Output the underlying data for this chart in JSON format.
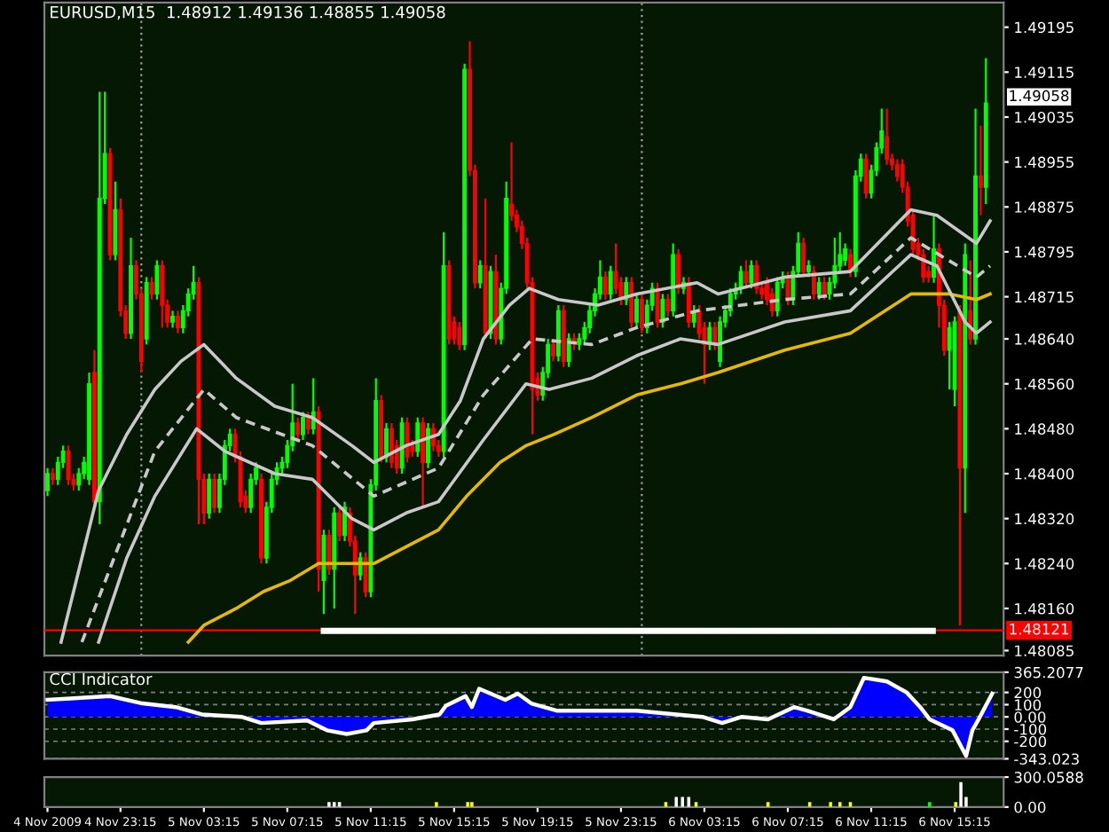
{
  "chart_data": [
    {
      "type": "candlestick",
      "title": "EURUSD,M15  1.48912 1.49136 1.48855 1.49058",
      "tick_labels": "y",
      "xlim": [
        "2009-11-04T19:36",
        "2009-11-06T17:36"
      ],
      "ylim": [
        1.48076,
        1.49239
      ],
      "yticks": [
        {
          "value": 1.49195,
          "label": "1.49195"
        },
        {
          "value": 1.49115,
          "label": "1.49115"
        },
        {
          "value": 1.49035,
          "label": "1.49035"
        },
        {
          "value": 1.48955,
          "label": "1.48955"
        },
        {
          "value": 1.48875,
          "label": "1.48875"
        },
        {
          "value": 1.48795,
          "label": "1.48795"
        },
        {
          "value": 1.48715,
          "label": "1.48715"
        },
        {
          "value": 1.4864,
          "label": "1.48640"
        },
        {
          "value": 1.4856,
          "label": "1.48560"
        },
        {
          "value": 1.4848,
          "label": "1.48480"
        },
        {
          "value": 1.484,
          "label": "1.48400"
        },
        {
          "value": 1.4832,
          "label": "1.48320"
        },
        {
          "value": 1.4824,
          "label": "1.48240"
        },
        {
          "value": 1.4816,
          "label": "1.48160"
        },
        {
          "value": 1.48085,
          "label": "1.48085"
        }
      ],
      "x": [
        "2009-11-04T19:45",
        "2009-11-04T20:00",
        "2009-11-04T20:15",
        "2009-11-04T20:30",
        "2009-11-04T20:45",
        "2009-11-04T21:00",
        "2009-11-04T21:15",
        "2009-11-04T21:30",
        "2009-11-04T21:45",
        "2009-11-04T22:00",
        "2009-11-04T22:15",
        "2009-11-04T22:30",
        "2009-11-04T22:45",
        "2009-11-04T23:00",
        "2009-11-04T23:15",
        "2009-11-04T23:30",
        "2009-11-04T23:45",
        "2009-11-05T00:00",
        "2009-11-05T00:15",
        "2009-11-05T00:30",
        "2009-11-05T00:45",
        "2009-11-05T01:00",
        "2009-11-05T01:15",
        "2009-11-05T01:30",
        "2009-11-05T01:45",
        "2009-11-05T02:00",
        "2009-11-05T02:15",
        "2009-11-05T02:30",
        "2009-11-05T02:45",
        "2009-11-05T03:00",
        "2009-11-05T03:15",
        "2009-11-05T03:30",
        "2009-11-05T03:45",
        "2009-11-05T04:00",
        "2009-11-05T04:15",
        "2009-11-05T04:30",
        "2009-11-05T04:45",
        "2009-11-05T05:00",
        "2009-11-05T05:15",
        "2009-11-05T05:30",
        "2009-11-05T05:45",
        "2009-11-05T06:00",
        "2009-11-05T06:15",
        "2009-11-05T06:30",
        "2009-11-05T06:45",
        "2009-11-05T07:00",
        "2009-11-05T07:15",
        "2009-11-05T07:30",
        "2009-11-05T07:45",
        "2009-11-05T08:00",
        "2009-11-05T08:15",
        "2009-11-05T08:30",
        "2009-11-05T08:45",
        "2009-11-05T09:00",
        "2009-11-05T09:15",
        "2009-11-05T09:30",
        "2009-11-05T09:45",
        "2009-11-05T10:00",
        "2009-11-05T10:15",
        "2009-11-05T10:30",
        "2009-11-05T10:45",
        "2009-11-05T11:00",
        "2009-11-05T11:15",
        "2009-11-05T11:30",
        "2009-11-05T11:45",
        "2009-11-05T12:00",
        "2009-11-05T12:15",
        "2009-11-05T12:30",
        "2009-11-05T12:45",
        "2009-11-05T13:00",
        "2009-11-05T13:15",
        "2009-11-05T13:30",
        "2009-11-05T13:45",
        "2009-11-05T14:00",
        "2009-11-05T14:15",
        "2009-11-05T14:30",
        "2009-11-05T14:45",
        "2009-11-05T15:00",
        "2009-11-05T15:15",
        "2009-11-05T15:30",
        "2009-11-05T15:45",
        "2009-11-05T16:00",
        "2009-11-05T16:15",
        "2009-11-05T16:30",
        "2009-11-05T16:45",
        "2009-11-05T17:00",
        "2009-11-05T17:15",
        "2009-11-05T17:30",
        "2009-11-05T17:45",
        "2009-11-05T18:00",
        "2009-11-05T18:15",
        "2009-11-05T18:30",
        "2009-11-05T18:45",
        "2009-11-05T19:00",
        "2009-11-05T19:15",
        "2009-11-05T19:30",
        "2009-11-05T19:45",
        "2009-11-05T20:00",
        "2009-11-05T20:15",
        "2009-11-05T20:30",
        "2009-11-05T20:45",
        "2009-11-05T21:00",
        "2009-11-05T21:15",
        "2009-11-05T21:30",
        "2009-11-05T21:45",
        "2009-11-05T22:00",
        "2009-11-05T22:15",
        "2009-11-05T22:30",
        "2009-11-05T22:45",
        "2009-11-05T23:00",
        "2009-11-05T23:15",
        "2009-11-05T23:30",
        "2009-11-05T23:45",
        "2009-11-06T00:00",
        "2009-11-06T00:15",
        "2009-11-06T00:30",
        "2009-11-06T00:45",
        "2009-11-06T01:00",
        "2009-11-06T01:15",
        "2009-11-06T01:30",
        "2009-11-06T01:45",
        "2009-11-06T02:00",
        "2009-11-06T02:15",
        "2009-11-06T02:30",
        "2009-11-06T02:45",
        "2009-11-06T03:00",
        "2009-11-06T03:15",
        "2009-11-06T03:30",
        "2009-11-06T03:45",
        "2009-11-06T04:00",
        "2009-11-06T04:15",
        "2009-11-06T04:30",
        "2009-11-06T04:45",
        "2009-11-06T05:00",
        "2009-11-06T05:15",
        "2009-11-06T05:30",
        "2009-11-06T05:45",
        "2009-11-06T06:00",
        "2009-11-06T06:15",
        "2009-11-06T06:30",
        "2009-11-06T06:45",
        "2009-11-06T07:00",
        "2009-11-06T07:15",
        "2009-11-06T07:30",
        "2009-11-06T07:45",
        "2009-11-06T08:00",
        "2009-11-06T08:15",
        "2009-11-06T08:30",
        "2009-11-06T08:45",
        "2009-11-06T09:00",
        "2009-11-06T09:15",
        "2009-11-06T09:30",
        "2009-11-06T09:45",
        "2009-11-06T10:00",
        "2009-11-06T10:15",
        "2009-11-06T10:30",
        "2009-11-06T10:45",
        "2009-11-06T11:00",
        "2009-11-06T11:15",
        "2009-11-06T11:30",
        "2009-11-06T11:45",
        "2009-11-06T12:00",
        "2009-11-06T12:15",
        "2009-11-06T12:30",
        "2009-11-06T12:45",
        "2009-11-06T13:00",
        "2009-11-06T13:15",
        "2009-11-06T13:30",
        "2009-11-06T13:45",
        "2009-11-06T14:00",
        "2009-11-06T14:15",
        "2009-11-06T14:30",
        "2009-11-06T14:45",
        "2009-11-06T15:00",
        "2009-11-06T15:15",
        "2009-11-06T15:30",
        "2009-11-06T15:45",
        "2009-11-06T16:00",
        "2009-11-06T16:15",
        "2009-11-06T16:30",
        "2009-11-06T16:45"
      ],
      "ohlc": [
        [
          1.4837,
          1.4841,
          1.4836,
          1.484
        ],
        [
          1.484,
          1.4841,
          1.4838,
          1.4839
        ],
        [
          1.4839,
          1.4843,
          1.4838,
          1.4842
        ],
        [
          1.4842,
          1.4845,
          1.4841,
          1.4844
        ],
        [
          1.4844,
          1.4845,
          1.4838,
          1.4839
        ],
        [
          1.4839,
          1.484,
          1.4837,
          1.4838
        ],
        [
          1.4838,
          1.4841,
          1.4837,
          1.484
        ],
        [
          1.484,
          1.4843,
          1.4839,
          1.4842
        ],
        [
          1.4839,
          1.4858,
          1.4838,
          1.4856
        ],
        [
          1.4858,
          1.4862,
          1.4834,
          1.4835
        ],
        [
          1.4835,
          1.4908,
          1.4831,
          1.4889
        ],
        [
          1.4889,
          1.4908,
          1.4888,
          1.4897
        ],
        [
          1.4897,
          1.4898,
          1.4878,
          1.4879
        ],
        [
          1.4879,
          1.4892,
          1.4878,
          1.4887
        ],
        [
          1.4887,
          1.4889,
          1.4868,
          1.4869
        ],
        [
          1.4869,
          1.487,
          1.4864,
          1.4865
        ],
        [
          1.4865,
          1.4882,
          1.4864,
          1.4877
        ],
        [
          1.4877,
          1.4878,
          1.4871,
          1.4872
        ],
        [
          1.4872,
          1.4873,
          1.4858,
          1.486
        ],
        [
          1.4864,
          1.4875,
          1.4863,
          1.4874
        ],
        [
          1.4874,
          1.4875,
          1.4871,
          1.4872
        ],
        [
          1.4872,
          1.4878,
          1.4871,
          1.4877
        ],
        [
          1.4877,
          1.4878,
          1.4866,
          1.487
        ],
        [
          1.487,
          1.4871,
          1.4866,
          1.4867
        ],
        [
          1.4867,
          1.4869,
          1.4866,
          1.4868
        ],
        [
          1.4868,
          1.4869,
          1.4865,
          1.4866
        ],
        [
          1.4866,
          1.487,
          1.4865,
          1.4869
        ],
        [
          1.4869,
          1.4873,
          1.4868,
          1.4872
        ],
        [
          1.4872,
          1.4877,
          1.4871,
          1.4874
        ],
        [
          1.4874,
          1.4875,
          1.4831,
          1.4839
        ],
        [
          1.4839,
          1.484,
          1.4831,
          1.4833
        ],
        [
          1.4833,
          1.484,
          1.4832,
          1.4839
        ],
        [
          1.4839,
          1.484,
          1.4833,
          1.4834
        ],
        [
          1.4834,
          1.484,
          1.4833,
          1.4839
        ],
        [
          1.4839,
          1.4846,
          1.4838,
          1.4845
        ],
        [
          1.4845,
          1.4848,
          1.4844,
          1.4847
        ],
        [
          1.4847,
          1.4848,
          1.4842,
          1.4843
        ],
        [
          1.4843,
          1.4844,
          1.4834,
          1.4835
        ],
        [
          1.4836,
          1.4837,
          1.4833,
          1.4834
        ],
        [
          1.4834,
          1.484,
          1.4833,
          1.4839
        ],
        [
          1.4839,
          1.4842,
          1.4838,
          1.4841
        ],
        [
          1.4839,
          1.484,
          1.4824,
          1.4825
        ],
        [
          1.4825,
          1.4835,
          1.4824,
          1.4834
        ],
        [
          1.4834,
          1.484,
          1.4833,
          1.4839
        ],
        [
          1.4839,
          1.4842,
          1.4838,
          1.4841
        ],
        [
          1.4841,
          1.4843,
          1.484,
          1.4842
        ],
        [
          1.4842,
          1.4846,
          1.4841,
          1.4845
        ],
        [
          1.4845,
          1.4856,
          1.4844,
          1.4849
        ],
        [
          1.4849,
          1.485,
          1.4846,
          1.4847
        ],
        [
          1.4847,
          1.4851,
          1.4846,
          1.485
        ],
        [
          1.485,
          1.4851,
          1.4847,
          1.4848
        ],
        [
          1.4848,
          1.4857,
          1.4847,
          1.4851
        ],
        [
          1.4851,
          1.4852,
          1.4819,
          1.4823
        ],
        [
          1.4821,
          1.483,
          1.4815,
          1.4829
        ],
        [
          1.4829,
          1.483,
          1.4822,
          1.4823
        ],
        [
          1.4823,
          1.4834,
          1.4816,
          1.4833
        ],
        [
          1.4833,
          1.4834,
          1.4828,
          1.4829
        ],
        [
          1.4829,
          1.4835,
          1.4828,
          1.4834
        ],
        [
          1.4833,
          1.4834,
          1.4827,
          1.4828
        ],
        [
          1.4828,
          1.4829,
          1.4815,
          1.4822
        ],
        [
          1.4822,
          1.4826,
          1.4821,
          1.4825
        ],
        [
          1.4825,
          1.4826,
          1.4818,
          1.4819
        ],
        [
          1.4819,
          1.4839,
          1.4818,
          1.4838
        ],
        [
          1.4838,
          1.4857,
          1.4837,
          1.4853
        ],
        [
          1.4853,
          1.4854,
          1.4842,
          1.4843
        ],
        [
          1.4843,
          1.4849,
          1.4842,
          1.4848
        ],
        [
          1.4848,
          1.4849,
          1.4841,
          1.4842
        ],
        [
          1.4845,
          1.4846,
          1.484,
          1.4841
        ],
        [
          1.4841,
          1.485,
          1.484,
          1.4849
        ],
        [
          1.4849,
          1.485,
          1.4842,
          1.4843
        ],
        [
          1.4845,
          1.4846,
          1.4843,
          1.4844
        ],
        [
          1.4844,
          1.485,
          1.4843,
          1.4849
        ],
        [
          1.4849,
          1.485,
          1.4834,
          1.4842
        ],
        [
          1.4842,
          1.4849,
          1.4841,
          1.4848
        ],
        [
          1.4848,
          1.4849,
          1.4844,
          1.4845
        ],
        [
          1.4845,
          1.4846,
          1.4843,
          1.4844
        ],
        [
          1.4844,
          1.4883,
          1.4843,
          1.4877
        ],
        [
          1.4877,
          1.4878,
          1.4863,
          1.4864
        ],
        [
          1.4867,
          1.4868,
          1.4863,
          1.4864
        ],
        [
          1.4866,
          1.4867,
          1.4862,
          1.4863
        ],
        [
          1.4863,
          1.4913,
          1.4862,
          1.4912
        ],
        [
          1.4912,
          1.4917,
          1.4893,
          1.4894
        ],
        [
          1.4894,
          1.4895,
          1.4873,
          1.4874
        ],
        [
          1.4874,
          1.4878,
          1.4873,
          1.4877
        ],
        [
          1.4877,
          1.4889,
          1.4864,
          1.4865
        ],
        [
          1.4865,
          1.4877,
          1.4864,
          1.4876
        ],
        [
          1.4876,
          1.4879,
          1.4863,
          1.4864
        ],
        [
          1.4864,
          1.4874,
          1.4863,
          1.4873
        ],
        [
          1.4873,
          1.4892,
          1.4872,
          1.4889
        ],
        [
          1.4888,
          1.4899,
          1.4885,
          1.4886
        ],
        [
          1.4886,
          1.4887,
          1.4883,
          1.4884
        ],
        [
          1.4884,
          1.4885,
          1.488,
          1.4881
        ],
        [
          1.4881,
          1.4882,
          1.4873,
          1.4874
        ],
        [
          1.4874,
          1.4875,
          1.4847,
          1.4855
        ],
        [
          1.4857,
          1.4858,
          1.4853,
          1.4854
        ],
        [
          1.4854,
          1.4859,
          1.4853,
          1.4858
        ],
        [
          1.4858,
          1.4864,
          1.4857,
          1.4863
        ],
        [
          1.4863,
          1.4864,
          1.486,
          1.4861
        ],
        [
          1.4861,
          1.487,
          1.486,
          1.4869
        ],
        [
          1.4869,
          1.487,
          1.4859,
          1.486
        ],
        [
          1.486,
          1.4865,
          1.4859,
          1.4864
        ],
        [
          1.4864,
          1.4865,
          1.4862,
          1.4863
        ],
        [
          1.4863,
          1.4865,
          1.4862,
          1.4864
        ],
        [
          1.4864,
          1.4867,
          1.4863,
          1.4866
        ],
        [
          1.4866,
          1.487,
          1.4865,
          1.4869
        ],
        [
          1.4869,
          1.4873,
          1.4868,
          1.4872
        ],
        [
          1.4872,
          1.4878,
          1.4871,
          1.4875
        ],
        [
          1.4875,
          1.4876,
          1.4871,
          1.4872
        ],
        [
          1.4872,
          1.4877,
          1.4871,
          1.4876
        ],
        [
          1.4876,
          1.4881,
          1.4872,
          1.4873
        ],
        [
          1.4874,
          1.4875,
          1.487,
          1.4871
        ],
        [
          1.4871,
          1.4875,
          1.487,
          1.4874
        ],
        [
          1.4874,
          1.4875,
          1.4866,
          1.4867
        ],
        [
          1.4867,
          1.4872,
          1.4866,
          1.4871
        ],
        [
          1.4871,
          1.4872,
          1.4865,
          1.4866
        ],
        [
          1.4866,
          1.4871,
          1.4865,
          1.487
        ],
        [
          1.487,
          1.4874,
          1.4869,
          1.4873
        ],
        [
          1.4873,
          1.4874,
          1.4866,
          1.4867
        ],
        [
          1.4867,
          1.4872,
          1.4866,
          1.4871
        ],
        [
          1.4871,
          1.4872,
          1.4868,
          1.4869
        ],
        [
          1.4869,
          1.4881,
          1.4868,
          1.4879
        ],
        [
          1.4879,
          1.488,
          1.4872,
          1.4873
        ],
        [
          1.4873,
          1.4875,
          1.4872,
          1.4874
        ],
        [
          1.4874,
          1.4875,
          1.4866,
          1.4867
        ],
        [
          1.4867,
          1.487,
          1.4866,
          1.4869
        ],
        [
          1.4869,
          1.487,
          1.4864,
          1.4865
        ],
        [
          1.4866,
          1.4867,
          1.4856,
          1.4863
        ],
        [
          1.4863,
          1.4867,
          1.4862,
          1.4866
        ],
        [
          1.4866,
          1.4867,
          1.4862,
          1.4863
        ],
        [
          1.486,
          1.4868,
          1.4859,
          1.4867
        ],
        [
          1.4867,
          1.487,
          1.4866,
          1.4869
        ],
        [
          1.4869,
          1.4873,
          1.4868,
          1.4872
        ],
        [
          1.4872,
          1.4874,
          1.4871,
          1.4873
        ],
        [
          1.4873,
          1.4877,
          1.4872,
          1.4876
        ],
        [
          1.4876,
          1.4878,
          1.4873,
          1.4874
        ],
        [
          1.4874,
          1.4878,
          1.4873,
          1.4877
        ],
        [
          1.4877,
          1.4878,
          1.4872,
          1.4873
        ],
        [
          1.4873,
          1.4874,
          1.4871,
          1.4872
        ],
        [
          1.4874,
          1.4875,
          1.487,
          1.4871
        ],
        [
          1.4872,
          1.4873,
          1.4868,
          1.4869
        ],
        [
          1.4869,
          1.4875,
          1.4868,
          1.4874
        ],
        [
          1.4874,
          1.4876,
          1.4873,
          1.4875
        ],
        [
          1.4875,
          1.4876,
          1.487,
          1.4871
        ],
        [
          1.4871,
          1.4877,
          1.487,
          1.4876
        ],
        [
          1.4876,
          1.4883,
          1.4875,
          1.4881
        ],
        [
          1.4881,
          1.4882,
          1.4875,
          1.4876
        ],
        [
          1.4876,
          1.4878,
          1.4875,
          1.4877
        ],
        [
          1.4876,
          1.4877,
          1.4871,
          1.4872
        ],
        [
          1.4872,
          1.4875,
          1.4871,
          1.4874
        ],
        [
          1.4874,
          1.4875,
          1.4871,
          1.4872
        ],
        [
          1.4872,
          1.4875,
          1.4871,
          1.4874
        ],
        [
          1.4874,
          1.4882,
          1.4873,
          1.4877
        ],
        [
          1.4877,
          1.4883,
          1.4876,
          1.4879
        ],
        [
          1.4878,
          1.4881,
          1.4877,
          1.488
        ],
        [
          1.4879,
          1.488,
          1.4875,
          1.4876
        ],
        [
          1.4876,
          1.4894,
          1.4875,
          1.4893
        ],
        [
          1.4893,
          1.4897,
          1.4892,
          1.4896
        ],
        [
          1.4896,
          1.4897,
          1.4889,
          1.489
        ],
        [
          1.489,
          1.4895,
          1.4889,
          1.4894
        ],
        [
          1.4894,
          1.4899,
          1.4893,
          1.4898
        ],
        [
          1.4898,
          1.4905,
          1.4897,
          1.4901
        ],
        [
          1.49,
          1.4905,
          1.4895,
          1.4896
        ],
        [
          1.4896,
          1.4897,
          1.4894,
          1.4895
        ],
        [
          1.4895,
          1.4896,
          1.4892,
          1.4893
        ],
        [
          1.4895,
          1.4896,
          1.489,
          1.4891
        ],
        [
          1.4891,
          1.4892,
          1.4884,
          1.4885
        ],
        [
          1.4886,
          1.4887,
          1.4879,
          1.488
        ],
        [
          1.4881,
          1.4882,
          1.4878,
          1.4879
        ],
        [
          1.4879,
          1.488,
          1.4874,
          1.4875
        ],
        [
          1.4876,
          1.4877,
          1.4874,
          1.4875
        ],
        [
          1.4875,
          1.4886,
          1.4874,
          1.488
        ],
        [
          1.488,
          1.4881,
          1.4866,
          1.487
        ],
        [
          1.487,
          1.4871,
          1.4861,
          1.4862
        ],
        [
          1.4862,
          1.4867,
          1.4855,
          1.4866
        ],
        [
          1.4855,
          1.4868,
          1.4852,
          1.4867
        ],
        [
          1.4869,
          1.487,
          1.4813,
          1.4841
        ],
        [
          1.4841,
          1.4881,
          1.4833,
          1.4879
        ],
        [
          1.4869,
          1.4878,
          1.4863,
          1.4864
        ],
        [
          1.4864,
          1.4905,
          1.4863,
          1.4893
        ],
        [
          1.4893,
          1.4902,
          1.4886,
          1.4891
        ],
        [
          1.4891,
          1.4914,
          1.4888,
          1.4906
        ]
      ],
      "colors": [
        "#00ff00",
        "#ff0000",
        "#00ff00",
        "#00ff00",
        "#ff0000",
        "#ff0000",
        "#00ff00",
        "#00ff00",
        "#00ff00",
        "#ff0000",
        "#00ff00",
        "#00ff00",
        "#ff0000",
        "#00ff00",
        "#ff0000",
        "#ff0000",
        "#00ff00",
        "#ff0000",
        "#ff0000",
        "#00ff00",
        "#ff0000",
        "#00ff00",
        "#ff0000",
        "#ff0000",
        "#00ff00",
        "#ff0000",
        "#00ff00",
        "#00ff00",
        "#00ff00",
        "#ff0000",
        "#ff0000",
        "#00ff00",
        "#ff0000",
        "#00ff00",
        "#00ff00",
        "#00ff00",
        "#ff0000",
        "#ff0000",
        "#ff0000",
        "#00ff00",
        "#00ff00",
        "#ff0000",
        "#00ff00",
        "#00ff00",
        "#00ff00",
        "#00ff00",
        "#00ff00",
        "#00ff00",
        "#ff0000",
        "#00ff00",
        "#ff0000",
        "#00ff00",
        "#ff0000",
        "#00ff00",
        "#ff0000",
        "#00ff00",
        "#ff0000",
        "#00ff00",
        "#ff0000",
        "#ff0000",
        "#00ff00",
        "#ff0000",
        "#00ff00",
        "#00ff00",
        "#ff0000",
        "#00ff00",
        "#ff0000",
        "#ff0000",
        "#00ff00",
        "#ff0000",
        "#ff0000",
        "#00ff00",
        "#ff0000",
        "#00ff00",
        "#ff0000",
        "#ff0000",
        "#00ff00",
        "#ff0000",
        "#ff0000",
        "#ff0000",
        "#00ff00",
        "#ff0000",
        "#ff0000",
        "#00ff00",
        "#ff0000",
        "#00ff00",
        "#ff0000",
        "#00ff00",
        "#00ff00",
        "#ff0000",
        "#ff0000",
        "#ff0000",
        "#ff0000",
        "#ff0000",
        "#ff0000",
        "#00ff00",
        "#00ff00",
        "#ff0000",
        "#00ff00",
        "#ff0000",
        "#00ff00",
        "#ff0000",
        "#00ff00",
        "#00ff00",
        "#00ff00",
        "#00ff00",
        "#00ff00",
        "#ff0000",
        "#00ff00",
        "#ff0000",
        "#ff0000",
        "#00ff00",
        "#ff0000",
        "#00ff00",
        "#ff0000",
        "#00ff00",
        "#00ff00",
        "#ff0000",
        "#00ff00",
        "#ff0000",
        "#00ff00",
        "#ff0000",
        "#00ff00",
        "#ff0000",
        "#00ff00",
        "#ff0000",
        "#ff0000",
        "#00ff00",
        "#ff0000",
        "#00ff00",
        "#00ff00",
        "#00ff00",
        "#00ff00",
        "#00ff00",
        "#ff0000",
        "#00ff00",
        "#ff0000",
        "#ff0000",
        "#ff0000",
        "#ff0000",
        "#00ff00",
        "#00ff00",
        "#ff0000",
        "#00ff00",
        "#00ff00",
        "#ff0000",
        "#00ff00",
        "#ff0000",
        "#00ff00",
        "#ff0000",
        "#00ff00",
        "#00ff00",
        "#00ff00",
        "#00ff00",
        "#ff0000",
        "#00ff00",
        "#00ff00",
        "#ff0000",
        "#00ff00",
        "#00ff00",
        "#00ff00",
        "#ff0000",
        "#ff0000",
        "#ff0000",
        "#ff0000",
        "#ff0000",
        "#ff0000",
        "#ff0000",
        "#ff0000",
        "#ff0000",
        "#00ff00",
        "#ff0000",
        "#ff0000",
        "#00ff00",
        "#00ff00",
        "#ff0000",
        "#00ff00",
        "#ff0000",
        "#00ff00",
        "#ff0000",
        "#00ff00"
      ],
      "series": [
        {
          "type": "line",
          "color": "#e6b800",
          "x": [
            "2009-11-05T02:30",
            "2009-11-05T03:15",
            "2009-11-05T04:48",
            "2009-11-05T06:06",
            "2009-11-05T07:24",
            "2009-11-05T08:45",
            "2009-11-05T11:24",
            "2009-11-05T12:57",
            "2009-11-05T14:30",
            "2009-11-05T15:51",
            "2009-11-05T17:27",
            "2009-11-05T18:42",
            "2009-11-05T20:03",
            "2009-11-05T21:51",
            "2009-11-06T00:00",
            "2009-11-06T02:06",
            "2009-11-06T03:54",
            "2009-11-06T07:06",
            "2009-11-06T10:15",
            "2009-11-06T13:09",
            "2009-11-06T15:00",
            "2009-11-06T16:18",
            "2009-11-06T16:57"
          ],
          "values": [
            1.481,
            1.4813,
            1.4816,
            1.4819,
            1.4821,
            1.4824,
            1.4824,
            1.4827,
            1.483,
            1.4836,
            1.4842,
            1.4845,
            1.4847,
            1.485,
            1.4854,
            1.4856,
            1.4858,
            1.4862,
            1.4865,
            1.4872,
            1.4872,
            1.4871,
            1.4872
          ]
        },
        {
          "type": "line",
          "color": "#c8c8c8",
          "x": [
            "2009-11-04T20:24",
            "2009-11-04T22:12",
            "2009-11-04T23:33",
            "2009-11-05T00:54",
            "2009-11-05T02:09",
            "2009-11-05T03:15",
            "2009-11-05T04:48",
            "2009-11-05T06:39",
            "2009-11-05T08:27",
            "2009-11-05T10:21",
            "2009-11-05T11:24",
            "2009-11-05T12:57",
            "2009-11-05T14:30",
            "2009-11-05T15:33",
            "2009-11-05T16:39",
            "2009-11-05T17:54",
            "2009-11-05T18:51",
            "2009-11-05T20:15",
            "2009-11-05T22:09",
            "2009-11-06T00:00",
            "2009-11-06T02:54",
            "2009-11-06T03:54",
            "2009-11-06T07:06",
            "2009-11-06T10:15",
            "2009-11-06T13:09",
            "2009-11-06T14:24",
            "2009-11-06T16:18",
            "2009-11-06T16:57"
          ],
          "values": [
            1.481,
            1.4837,
            1.4847,
            1.4855,
            1.486,
            1.4863,
            1.4857,
            1.4852,
            1.485,
            1.4845,
            1.4842,
            1.4845,
            1.4847,
            1.4853,
            1.4864,
            1.487,
            1.4873,
            1.4871,
            1.487,
            1.4872,
            1.4874,
            1.4872,
            1.4875,
            1.4876,
            1.4887,
            1.4886,
            1.4881,
            1.4885
          ]
        },
        {
          "type": "line",
          "color": "#c8c8c8",
          "line_style": "dashed",
          "x": [
            "2009-11-04T21:24",
            "2009-11-05T00:54",
            "2009-11-05T03:15",
            "2009-11-05T04:48",
            "2009-11-05T08:27",
            "2009-11-05T11:24",
            "2009-11-05T14:30",
            "2009-11-05T16:39",
            "2009-11-05T19:00",
            "2009-11-05T21:51",
            "2009-11-06T00:00",
            "2009-11-06T02:54",
            "2009-11-06T07:06",
            "2009-11-06T10:15",
            "2009-11-06T13:09",
            "2009-11-06T16:18",
            "2009-11-06T16:57"
          ],
          "values": [
            1.481,
            1.4844,
            1.4855,
            1.485,
            1.4845,
            1.4836,
            1.4841,
            1.4854,
            1.4864,
            1.4863,
            1.4866,
            1.4869,
            1.4871,
            1.4872,
            1.4882,
            1.4875,
            1.4877
          ]
        },
        {
          "type": "line",
          "color": "#c8c8c8",
          "x": [
            "2009-11-04T22:12",
            "2009-11-04T23:33",
            "2009-11-05T00:54",
            "2009-11-05T02:54",
            "2009-11-05T04:15",
            "2009-11-05T06:39",
            "2009-11-05T08:27",
            "2009-11-05T10:21",
            "2009-11-05T11:24",
            "2009-11-05T12:57",
            "2009-11-05T14:30",
            "2009-11-05T16:39",
            "2009-11-05T18:42",
            "2009-11-05T19:48",
            "2009-11-05T21:51",
            "2009-11-06T00:00",
            "2009-11-06T02:06",
            "2009-11-06T03:54",
            "2009-11-06T07:06",
            "2009-11-06T10:15",
            "2009-11-06T13:09",
            "2009-11-06T14:24",
            "2009-11-06T15:45",
            "2009-11-06T16:18",
            "2009-11-06T16:57"
          ],
          "values": [
            1.481,
            1.4825,
            1.4836,
            1.4848,
            1.4844,
            1.484,
            1.4839,
            1.4832,
            1.483,
            1.4833,
            1.4835,
            1.4846,
            1.4856,
            1.4855,
            1.4857,
            1.4861,
            1.4864,
            1.4863,
            1.4867,
            1.4869,
            1.4879,
            1.4877,
            1.4867,
            1.4865,
            1.4867
          ]
        },
        {
          "type": "line",
          "color": "#ffffff",
          "x": [
            "2009-11-05T09:00",
            "2009-11-06T14:12"
          ],
          "values": [
            1.4812,
            1.4812
          ]
        }
      ],
      "ref_lines": [
        {
          "axis": "y",
          "value": 1.48121,
          "label": "1.48121",
          "color": "#ff0000"
        },
        {
          "axis": "x",
          "value": "2009-11-05T00:15",
          "color": "#a0a0a0",
          "line_style": "dotted"
        },
        {
          "axis": "x",
          "value": "2009-11-06T00:15",
          "color": "#a0a0a0",
          "line_style": "dotted"
        }
      ],
      "annotations": [
        {
          "text": "1.49058",
          "x": "2009-11-06T16:45",
          "y": 1.49058
        }
      ]
    },
    {
      "type": "area",
      "title": "CCI Indicator",
      "tick_labels": "y",
      "grid": "y",
      "xlim": [
        "2009-11-04T19:36",
        "2009-11-06T17:36"
      ],
      "ylim": [
        -343.023,
        365.2077
      ],
      "yticks": [
        {
          "value": 365.2077,
          "label": "365.2077"
        },
        200,
        100,
        {
          "value": 0,
          "label": "0.00"
        },
        -100,
        -200,
        {
          "value": -343.023,
          "label": "-343.023"
        }
      ],
      "series": [
        {
          "color": "#0000ff",
          "x": [
            "2009-11-04T19:45",
            "2009-11-04T20:51",
            "2009-11-04T22:45",
            "2009-11-05T00:18",
            "2009-11-05T01:54",
            "2009-11-05T03:09",
            "2009-11-05T05:03",
            "2009-11-05T06:00",
            "2009-11-05T08:12",
            "2009-11-05T09:09",
            "2009-11-05T10:06",
            "2009-11-05T11:03",
            "2009-11-05T11:24",
            "2009-11-05T13:15",
            "2009-11-05T14:33",
            "2009-11-05T14:51",
            "2009-11-05T15:48",
            "2009-11-05T16:06",
            "2009-11-05T16:27",
            "2009-11-05T17:42",
            "2009-11-05T18:18",
            "2009-11-05T18:57",
            "2009-11-05T20:12",
            "2009-11-05T22:06",
            "2009-11-06T00:00",
            "2009-11-06T01:54",
            "2009-11-06T03:09",
            "2009-11-06T04:06",
            "2009-11-06T05:03",
            "2009-11-06T06:18",
            "2009-11-06T07:33",
            "2009-11-06T08:12",
            "2009-11-06T09:27",
            "2009-11-06T10:15",
            "2009-11-06T10:54",
            "2009-11-06T12:00",
            "2009-11-06T12:57",
            "2009-11-06T13:36",
            "2009-11-06T14:03",
            "2009-11-06T15:09",
            "2009-11-06T15:48",
            "2009-11-06T16:06",
            "2009-11-06T16:24",
            "2009-11-06T17:03"
          ],
          "values": [
            140,
            150,
            170,
            110,
            80,
            20,
            0,
            -50,
            -30,
            -110,
            -140,
            -110,
            -50,
            -20,
            20,
            90,
            170,
            80,
            230,
            140,
            190,
            110,
            50,
            50,
            50,
            20,
            0,
            -50,
            0,
            -20,
            80,
            50,
            -20,
            80,
            320,
            290,
            200,
            80,
            -20,
            -110,
            -320,
            -110,
            -20,
            190
          ]
        }
      ]
    },
    {
      "type": "bar",
      "xlim": [
        "2009-11-04T19:36",
        "2009-11-06T17:36"
      ],
      "ylim": [
        0,
        300.0588
      ],
      "xticks": [
        {
          "value": "2009-11-04T19:45",
          "label": "4 Nov 2009"
        },
        {
          "value": "2009-11-04T23:15",
          "label": "4 Nov 23:15"
        },
        {
          "value": "2009-11-05T03:15",
          "label": "5 Nov 03:15"
        },
        {
          "value": "2009-11-05T07:15",
          "label": "5 Nov 07:15"
        },
        {
          "value": "2009-11-05T11:15",
          "label": "5 Nov 11:15"
        },
        {
          "value": "2009-11-05T15:15",
          "label": "5 Nov 15:15"
        },
        {
          "value": "2009-11-05T19:15",
          "label": "5 Nov 19:15"
        },
        {
          "value": "2009-11-05T23:15",
          "label": "5 Nov 23:15"
        },
        {
          "value": "2009-11-06T03:15",
          "label": "6 Nov 03:15"
        },
        {
          "value": "2009-11-06T07:15",
          "label": "6 Nov 07:15"
        },
        {
          "value": "2009-11-06T11:15",
          "label": "6 Nov 11:15"
        },
        {
          "value": "2009-11-06T15:15",
          "label": "6 Nov 15:15"
        }
      ],
      "yticks": [
        {
          "value": 300.0588,
          "label": "300.0588"
        },
        {
          "value": 0,
          "label": "0.00"
        }
      ],
      "x": [
        "2009-11-05T09:15",
        "2009-11-05T09:30",
        "2009-11-05T09:45",
        "2009-11-05T14:24",
        "2009-11-05T15:54",
        "2009-11-05T16:06",
        "2009-11-06T01:24",
        "2009-11-06T01:54",
        "2009-11-06T02:12",
        "2009-11-06T02:30",
        "2009-11-06T02:51",
        "2009-11-06T06:18",
        "2009-11-06T08:18",
        "2009-11-06T09:18",
        "2009-11-06T09:45",
        "2009-11-06T10:15",
        "2009-11-06T14:03",
        "2009-11-06T15:18",
        "2009-11-06T15:33",
        "2009-11-06T15:48"
      ],
      "values": [
        50,
        50,
        50,
        50,
        50,
        50,
        50,
        100,
        100,
        100,
        50,
        50,
        50,
        50,
        50,
        50,
        50,
        50,
        250,
        100
      ],
      "colors": [
        "#ffffff",
        "#ffffff",
        "#ffffff",
        "#ffff00",
        "#ffff00",
        "#ffff00",
        "#ffff00",
        "#ffffff",
        "#ffffff",
        "#ffffff",
        "#ffff00",
        "#ffff00",
        "#ffff00",
        "#ffff00",
        "#ffff00",
        "#ffff00",
        "#00ff00",
        "#ffff00",
        "#ffffff",
        "#ffffff"
      ]
    }
  ]
}
